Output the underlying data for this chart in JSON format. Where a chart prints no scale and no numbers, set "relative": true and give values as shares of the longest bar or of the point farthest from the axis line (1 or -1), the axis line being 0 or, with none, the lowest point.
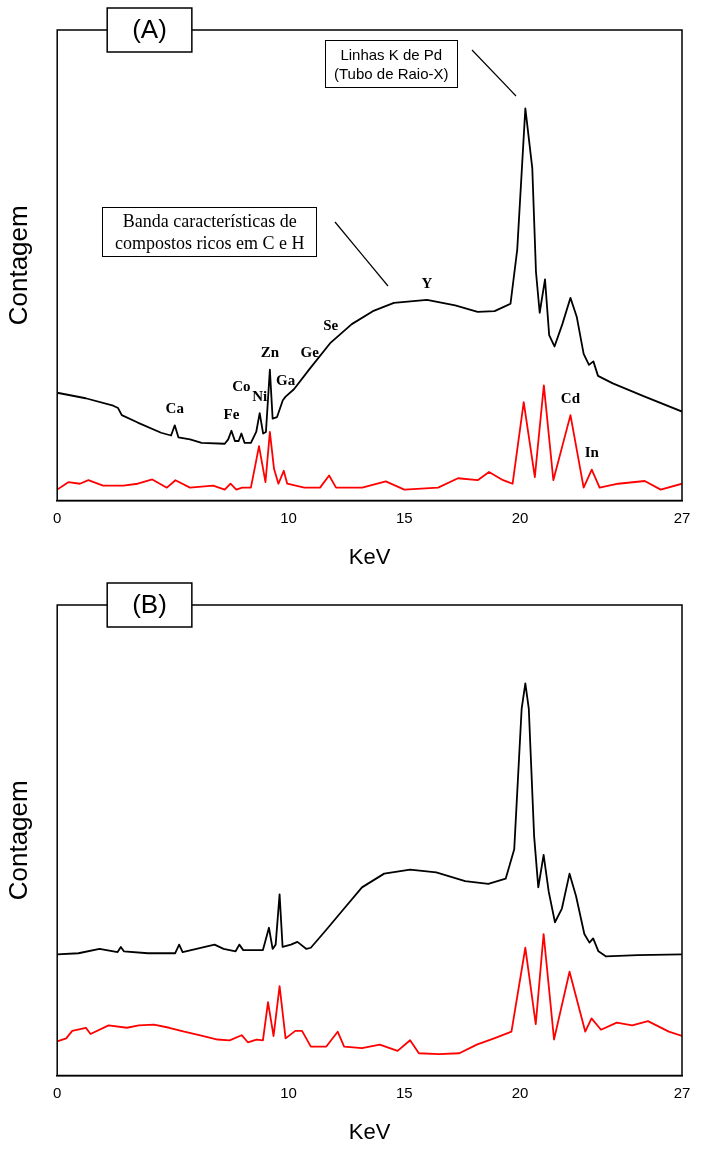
{
  "chart_data": [
    {
      "type": "line",
      "title": "(A)",
      "xlabel": "KeV",
      "ylabel": "Contagem",
      "relative": true,
      "xlim": [
        0,
        27
      ],
      "xticks": [
        0,
        10,
        15,
        20,
        27
      ],
      "grid": false,
      "legend": false,
      "marker": "none",
      "line_style": "solid",
      "series": [
        {
          "color": "#000000",
          "x": [
            0,
            1.23,
            2.42,
            2.63,
            2.79,
            3.48,
            4.49,
            4.92,
            5.08,
            5.24,
            5.74,
            6.24,
            7.24,
            7.39,
            7.53,
            7.68,
            7.84,
            7.96,
            8.1,
            8.37,
            8.6,
            8.75,
            8.9,
            9.02,
            9.19,
            9.31,
            9.5,
            9.75,
            9.87,
            10.23,
            10.91,
            11.82,
            12.73,
            13.64,
            14.55,
            15.98,
            17.2,
            18.17,
            18.9,
            19.59,
            19.88,
            20.23,
            20.53,
            20.69,
            20.85,
            21.08,
            21.26,
            21.49,
            21.83,
            22.18,
            22.45,
            22.75,
            22.98,
            23.17,
            23.37,
            24.01,
            25.39,
            27
          ],
          "values": [
            0.275,
            0.261,
            0.242,
            0.236,
            0.218,
            0.199,
            0.173,
            0.166,
            0.192,
            0.161,
            0.156,
            0.147,
            0.145,
            0.156,
            0.178,
            0.152,
            0.152,
            0.171,
            0.147,
            0.147,
            0.175,
            0.223,
            0.171,
            0.175,
            0.334,
            0.209,
            0.213,
            0.256,
            0.265,
            0.284,
            0.336,
            0.403,
            0.45,
            0.483,
            0.504,
            0.512,
            0.498,
            0.481,
            0.483,
            0.502,
            0.64,
            1.0,
            0.848,
            0.583,
            0.479,
            0.564,
            0.422,
            0.393,
            0.45,
            0.517,
            0.469,
            0.374,
            0.346,
            0.355,
            0.318,
            0.299,
            0.265,
            0.227
          ]
        },
        {
          "color": "#ff0000",
          "x": [
            0,
            0.48,
            0.98,
            1.35,
            1.98,
            2.86,
            3.48,
            4.11,
            4.74,
            5.11,
            5.74,
            6.74,
            7.24,
            7.49,
            7.74,
            7.99,
            8.37,
            8.56,
            8.72,
            8.87,
            9.0,
            9.19,
            9.37,
            9.56,
            9.79,
            9.94,
            10.68,
            11.36,
            11.75,
            12.05,
            13.18,
            14.2,
            15,
            16.46,
            17.32,
            18.17,
            18.66,
            19.27,
            19.68,
            20.16,
            20.64,
            21.03,
            21.44,
            22.18,
            22.75,
            23.1,
            23.44,
            24.24,
            25.39,
            26.08,
            27
          ],
          "values": [
            0.028,
            0.047,
            0.043,
            0.052,
            0.038,
            0.038,
            0.043,
            0.054,
            0.033,
            0.052,
            0.033,
            0.038,
            0.028,
            0.043,
            0.028,
            0.033,
            0.033,
            0.09,
            0.139,
            0.09,
            0.047,
            0.175,
            0.081,
            0.043,
            0.076,
            0.043,
            0.033,
            0.033,
            0.064,
            0.033,
            0.033,
            0.049,
            0.028,
            0.033,
            0.057,
            0.052,
            0.073,
            0.052,
            0.043,
            0.251,
            0.06,
            0.294,
            0.052,
            0.218,
            0.033,
            0.079,
            0.033,
            0.043,
            0.05,
            0.028,
            0.043
          ]
        }
      ],
      "annotations": [
        "Linhas K de Pd\n(Tubo de Raio-X)",
        "Banda características de\ncompostos ricos em C e H",
        {
          "text": "Ca",
          "x": 5.08,
          "y": 0.192
        },
        {
          "text": "Fe",
          "x": 7.53,
          "y": 0.178
        },
        {
          "text": "Co",
          "x": 7.96,
          "y": 0.171
        },
        {
          "text": "Ni",
          "x": 8.75,
          "y": 0.223
        },
        {
          "text": "Zn",
          "x": 9.19,
          "y": 0.334
        },
        {
          "text": "Ga",
          "x": 9.87,
          "y": 0.265
        },
        {
          "text": "Ge",
          "x": 10.91,
          "y": 0.336
        },
        {
          "text": "Se",
          "x": 11.82,
          "y": 0.403
        },
        {
          "text": "Y",
          "x": 15.98,
          "y": 0.512
        },
        {
          "text": "Cd",
          "x": 22.18,
          "y": 0.218
        },
        {
          "text": "In",
          "x": 23.1,
          "y": 0.079
        }
      ]
    },
    {
      "type": "line",
      "title": "(B)",
      "xlabel": "KeV",
      "ylabel": "Contagem",
      "relative": true,
      "xlim": [
        0,
        27
      ],
      "xticks": [
        0,
        10,
        15,
        20,
        27
      ],
      "grid": false,
      "legend": false,
      "marker": "none",
      "line_style": "solid",
      "series": [
        {
          "color": "#000000",
          "x": [
            0,
            0.92,
            1.83,
            2.61,
            2.75,
            2.88,
            3.92,
            5.1,
            5.27,
            5.42,
            6.8,
            7.19,
            7.71,
            7.87,
            8.04,
            8.89,
            9.15,
            9.31,
            9.44,
            9.61,
            9.74,
            10.1,
            10.38,
            10.77,
            10.96,
            11.63,
            12.4,
            13.17,
            14.13,
            15.25,
            16.38,
            17.63,
            18.63,
            19.38,
            19.75,
            20.07,
            20.23,
            20.38,
            20.61,
            20.79,
            21.02,
            21.24,
            21.51,
            21.81,
            22.14,
            22.42,
            22.78,
            23.0,
            23.16,
            23.39,
            23.72,
            25.08,
            27
          ],
          "values": [
            0.309,
            0.312,
            0.323,
            0.315,
            0.328,
            0.317,
            0.312,
            0.312,
            0.334,
            0.315,
            0.334,
            0.323,
            0.317,
            0.334,
            0.32,
            0.32,
            0.377,
            0.323,
            0.334,
            0.462,
            0.328,
            0.334,
            0.341,
            0.323,
            0.326,
            0.372,
            0.426,
            0.48,
            0.515,
            0.525,
            0.518,
            0.496,
            0.489,
            0.502,
            0.577,
            0.935,
            1.0,
            0.935,
            0.61,
            0.48,
            0.563,
            0.469,
            0.391,
            0.426,
            0.515,
            0.458,
            0.361,
            0.339,
            0.35,
            0.317,
            0.304,
            0.307,
            0.309
          ]
        },
        {
          "color": "#ff0000",
          "x": [
            0,
            0.39,
            0.65,
            1.24,
            1.44,
            2.22,
            3.01,
            3.53,
            4.18,
            4.84,
            5.49,
            6.14,
            6.93,
            7.45,
            7.97,
            8.24,
            8.63,
            8.89,
            9.11,
            9.35,
            9.61,
            9.87,
            10.29,
            10.58,
            10.96,
            11.63,
            12.12,
            12.4,
            13.17,
            13.94,
            14.71,
            15.25,
            15.63,
            16.5,
            17.38,
            18.13,
            18.88,
            19.63,
            20.23,
            20.68,
            21.02,
            21.47,
            22.14,
            22.82,
            23.09,
            23.5,
            24.18,
            24.85,
            25.53,
            26.43,
            27
          ],
          "values": [
            0.087,
            0.095,
            0.114,
            0.122,
            0.106,
            0.128,
            0.122,
            0.128,
            0.13,
            0.122,
            0.112,
            0.103,
            0.092,
            0.09,
            0.103,
            0.085,
            0.092,
            0.09,
            0.187,
            0.101,
            0.228,
            0.095,
            0.114,
            0.114,
            0.074,
            0.074,
            0.112,
            0.074,
            0.07,
            0.079,
            0.063,
            0.09,
            0.057,
            0.055,
            0.057,
            0.079,
            0.095,
            0.112,
            0.326,
            0.131,
            0.361,
            0.092,
            0.265,
            0.112,
            0.146,
            0.117,
            0.135,
            0.128,
            0.139,
            0.112,
            0.101
          ]
        }
      ]
    }
  ]
}
